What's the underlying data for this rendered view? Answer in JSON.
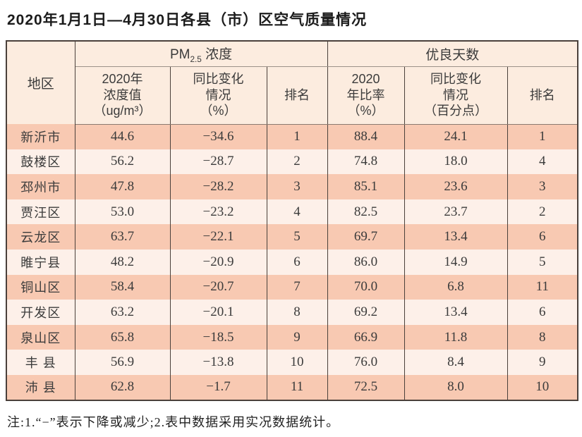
{
  "title": "2020年1月1日—4月30日各县（市）区空气质量情况",
  "table": {
    "region_header": "地区",
    "pm_group": {
      "prefix": "PM",
      "sub": "2.5",
      "suffix": " 浓度"
    },
    "good_days_group": "优良天数",
    "columns": [
      "2020年\n浓度值\n（ug/m³）",
      "同比变化\n情况\n（%）",
      "排名",
      "2020\n年比率\n（%）",
      "同比变化\n情况\n（百分点）",
      "排名"
    ],
    "rows": [
      [
        "新沂市",
        "44.6",
        "−34.6",
        "1",
        "88.4",
        "24.1",
        "1"
      ],
      [
        "鼓楼区",
        "56.2",
        "−28.7",
        "2",
        "74.8",
        "18.0",
        "4"
      ],
      [
        "邳州市",
        "47.8",
        "−28.2",
        "3",
        "85.1",
        "23.6",
        "3"
      ],
      [
        "贾汪区",
        "53.0",
        "−23.2",
        "4",
        "82.5",
        "23.7",
        "2"
      ],
      [
        "云龙区",
        "63.7",
        "−22.1",
        "5",
        "69.7",
        "13.4",
        "6"
      ],
      [
        "睢宁县",
        "48.2",
        "−20.9",
        "6",
        "86.0",
        "14.9",
        "5"
      ],
      [
        "铜山区",
        "58.4",
        "−20.7",
        "7",
        "70.0",
        "6.8",
        "11"
      ],
      [
        "开发区",
        "63.2",
        "−20.1",
        "8",
        "69.2",
        "13.4",
        "6"
      ],
      [
        "泉山区",
        "65.8",
        "−18.5",
        "9",
        "66.9",
        "11.8",
        "8"
      ],
      [
        "丰 县",
        "56.9",
        "−13.8",
        "10",
        "76.0",
        "8.4",
        "9"
      ],
      [
        "沛 县",
        "62.8",
        "−1.7",
        "11",
        "72.5",
        "8.0",
        "10"
      ]
    ]
  },
  "note": "注:1.“−”表示下降或减少;2.表中数据采用实况数据统计。",
  "colors": {
    "row_odd": "#f8c9b2",
    "row_even": "#fdf0e9",
    "header_bg": "#fcecdf",
    "border_dark": "#4a403b",
    "border_gray": "#9b9189"
  }
}
